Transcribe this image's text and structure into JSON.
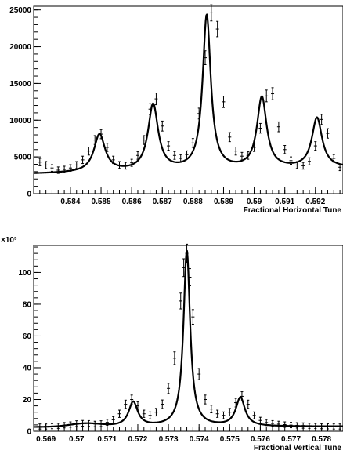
{
  "chart_data": [
    {
      "type": "line",
      "xlabel": "Fractional Horizontal Tune",
      "ylabel": "",
      "xlim": [
        0.5828,
        0.5929
      ],
      "ylim": [
        0,
        25500
      ],
      "x_ticks": [
        0.584,
        0.585,
        0.586,
        0.587,
        0.588,
        0.589,
        0.59,
        0.591,
        0.592
      ],
      "x_tick_labels": [
        "0.584",
        "0.585",
        "0.586",
        "0.587",
        "0.588",
        "0.589",
        "0.59",
        "0.591",
        "0.592"
      ],
      "y_ticks": [
        0,
        5000,
        10000,
        15000,
        20000,
        25000
      ],
      "y_tick_labels": [
        "0",
        "5000",
        "10000",
        "15000",
        "20000",
        "25000"
      ],
      "grid": false,
      "series": [
        {
          "kind": "data-with-error-bars",
          "x": [
            0.583,
            0.5832,
            0.5834,
            0.5836,
            0.5838,
            0.584,
            0.5842,
            0.5844,
            0.5846,
            0.5848,
            0.585,
            0.5852,
            0.5854,
            0.5856,
            0.5858,
            0.586,
            0.5862,
            0.5864,
            0.5866,
            0.5868,
            0.587,
            0.5872,
            0.5874,
            0.5876,
            0.5878,
            0.588,
            0.5882,
            0.5884,
            0.5886,
            0.5888,
            0.589,
            0.5892,
            0.5894,
            0.5896,
            0.5898,
            0.59,
            0.5902,
            0.5904,
            0.5906,
            0.5908,
            0.591,
            0.5912,
            0.5914,
            0.5916,
            0.5918,
            0.592,
            0.5922,
            0.5924,
            0.5926,
            0.5928
          ],
          "y": [
            4300,
            3900,
            3500,
            3200,
            3300,
            3500,
            3900,
            4600,
            5800,
            7300,
            8100,
            6300,
            4600,
            3900,
            3800,
            4200,
            5200,
            7300,
            11500,
            12900,
            9200,
            6500,
            5200,
            4800,
            5300,
            6900,
            10900,
            18500,
            24600,
            22400,
            12500,
            7700,
            5800,
            5100,
            5200,
            6300,
            8900,
            13300,
            13600,
            9100,
            6000,
            4500,
            3900,
            3800,
            4400,
            6500,
            10100,
            8200,
            4800,
            3600
          ],
          "error": [
            500,
            480,
            450,
            440,
            440,
            450,
            470,
            500,
            550,
            600,
            620,
            560,
            500,
            470,
            460,
            480,
            520,
            600,
            740,
            800,
            680,
            580,
            530,
            510,
            530,
            600,
            740,
            950,
            1100,
            1050,
            780,
            620,
            550,
            520,
            520,
            560,
            660,
            800,
            820,
            670,
            560,
            500,
            470,
            460,
            480,
            580,
            700,
            650,
            520,
            460
          ]
        },
        {
          "kind": "fit",
          "baseline": [
            2700,
            3500
          ],
          "peaks": [
            {
              "x0": 0.58495,
              "A": 5100,
              "gamma": 0.00022
            },
            {
              "x0": 0.5867,
              "A": 9000,
              "gamma": 0.0002
            },
            {
              "x0": 0.58845,
              "A": 21000,
              "gamma": 0.00016
            },
            {
              "x0": 0.59025,
              "A": 9700,
              "gamma": 0.00019
            },
            {
              "x0": 0.59205,
              "A": 6800,
              "gamma": 0.0002
            }
          ]
        }
      ]
    },
    {
      "type": "line",
      "xlabel": "Fractional Vertical Tune",
      "ylabel": "",
      "multiplier_label": "×10³",
      "xlim": [
        0.5686,
        0.5787
      ],
      "ylim": [
        0,
        117
      ],
      "x_ticks": [
        0.569,
        0.57,
        0.571,
        0.572,
        0.573,
        0.574,
        0.575,
        0.576,
        0.577,
        0.578
      ],
      "x_tick_labels": [
        "0.569",
        "0.57",
        "0.571",
        "0.572",
        "0.573",
        "0.574",
        "0.575",
        "0.576",
        "0.577",
        "0.578"
      ],
      "y_ticks": [
        0,
        20,
        40,
        60,
        80,
        100
      ],
      "y_tick_labels": [
        "0",
        "20",
        "40",
        "60",
        "80",
        "100"
      ],
      "grid": false,
      "series": [
        {
          "kind": "data-with-error-bars",
          "x": [
            0.5688,
            0.569,
            0.5692,
            0.5694,
            0.5696,
            0.5698,
            0.57,
            0.5702,
            0.5704,
            0.5706,
            0.5708,
            0.571,
            0.5712,
            0.5714,
            0.5716,
            0.5718,
            0.572,
            0.5722,
            0.5724,
            0.5726,
            0.5728,
            0.573,
            0.5732,
            0.5734,
            0.5735,
            0.5736,
            0.5737,
            0.5738,
            0.574,
            0.5742,
            0.5744,
            0.5746,
            0.5748,
            0.575,
            0.5752,
            0.5754,
            0.5756,
            0.5758,
            0.576,
            0.5762,
            0.5764,
            0.5766,
            0.5768,
            0.577,
            0.5772,
            0.5774,
            0.5776,
            0.5778,
            0.578,
            0.5782,
            0.5784,
            0.5786
          ],
          "y": [
            3.0,
            3.0,
            3.2,
            3.4,
            3.8,
            4.2,
            4.8,
            5.0,
            4.9,
            4.6,
            4.8,
            5.6,
            7.2,
            11,
            17,
            20,
            16,
            11,
            10,
            12,
            17,
            27,
            46,
            82,
            103,
            112,
            97,
            72,
            36,
            20,
            14,
            11,
            10,
            12,
            18,
            22,
            17,
            10,
            6.8,
            5.5,
            4.9,
            4.5,
            4.2,
            3.9,
            3.7,
            3.6,
            3.4,
            3.3,
            3.2,
            3.1,
            3.0,
            3.0
          ],
          "error": [
            1.6,
            1.6,
            1.6,
            1.6,
            1.7,
            1.7,
            1.8,
            1.8,
            1.8,
            1.7,
            1.8,
            1.9,
            2.0,
            2.3,
            2.6,
            2.8,
            2.6,
            2.3,
            2.2,
            2.4,
            2.7,
            3.2,
            4.0,
            5.0,
            5.6,
            5.8,
            5.4,
            4.6,
            3.5,
            2.8,
            2.4,
            2.3,
            2.2,
            2.4,
            2.7,
            2.9,
            2.6,
            2.2,
            2.0,
            1.9,
            1.8,
            1.8,
            1.7,
            1.7,
            1.7,
            1.7,
            1.6,
            1.6,
            1.6,
            1.6,
            1.6,
            1.6
          ]
        },
        {
          "kind": "fit",
          "baseline": [
            2.6,
            3.0
          ],
          "bump": {
            "x0": 0.5703,
            "A": 2.0,
            "sigma": 0.0005
          },
          "peaks": [
            {
              "x0": 0.57185,
              "A": 15.5,
              "gamma": 0.00018
            },
            {
              "x0": 0.5736,
              "A": 111,
              "gamma": 0.00013
            },
            {
              "x0": 0.57535,
              "A": 18.0,
              "gamma": 0.00018
            }
          ]
        }
      ]
    }
  ]
}
